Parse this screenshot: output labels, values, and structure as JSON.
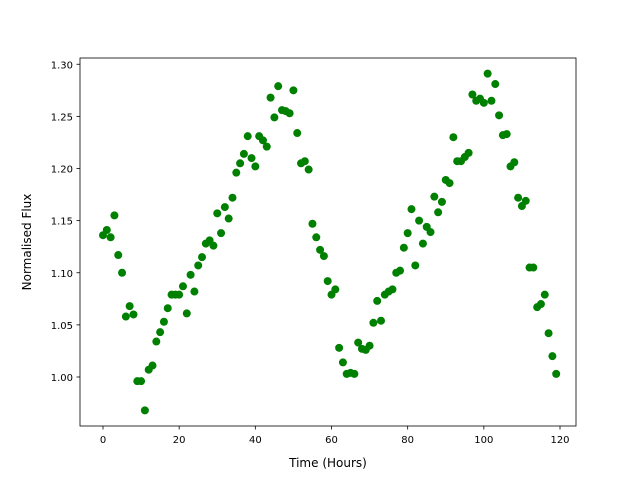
{
  "chart_data": {
    "type": "scatter",
    "title": "",
    "xlabel": "Time (Hours)",
    "ylabel": "Normalised Flux",
    "xlim": [
      -6.04,
      124.2
    ],
    "ylim": [
      0.953,
      1.306
    ],
    "xticks": [
      0,
      20,
      40,
      60,
      80,
      100,
      120
    ],
    "yticks": [
      1.0,
      1.05,
      1.1,
      1.15,
      1.2,
      1.25,
      1.3
    ],
    "grid": false,
    "marker_color": "#008000",
    "x": [
      0,
      1,
      2,
      3,
      4,
      5,
      6,
      7,
      8,
      9,
      10,
      11,
      12,
      13,
      14,
      15,
      16,
      17,
      18,
      19,
      20,
      21,
      22,
      23,
      24,
      25,
      26,
      27,
      28,
      29,
      30,
      31,
      32,
      33,
      34,
      35,
      36,
      37,
      38,
      39,
      40,
      41,
      42,
      43,
      44,
      45,
      46,
      47,
      48,
      49,
      50,
      51,
      52,
      53,
      54,
      55,
      56,
      57,
      58,
      59,
      60,
      61,
      62,
      63,
      64,
      65,
      66,
      67,
      68,
      69,
      70,
      71,
      72,
      73,
      74,
      75,
      76,
      77,
      78,
      79,
      80,
      81,
      82,
      83,
      84,
      85,
      86,
      87,
      88,
      89,
      90,
      91,
      92,
      93,
      94,
      95,
      96,
      97,
      98,
      99,
      100,
      101,
      102,
      103,
      104,
      105,
      106,
      107,
      108,
      109,
      110,
      111,
      112,
      113,
      114,
      115,
      116,
      117,
      118,
      119
    ],
    "y": [
      1.136,
      1.141,
      1.134,
      1.155,
      1.117,
      1.1,
      1.058,
      1.068,
      1.06,
      0.996,
      0.996,
      0.968,
      1.007,
      1.011,
      1.034,
      1.043,
      1.053,
      1.066,
      1.079,
      1.079,
      1.079,
      1.087,
      1.061,
      1.098,
      1.082,
      1.107,
      1.115,
      1.128,
      1.131,
      1.126,
      1.157,
      1.138,
      1.163,
      1.152,
      1.172,
      1.196,
      1.205,
      1.214,
      1.231,
      1.21,
      1.202,
      1.231,
      1.227,
      1.221,
      1.268,
      1.249,
      1.279,
      1.256,
      1.255,
      1.253,
      1.275,
      1.234,
      1.205,
      1.207,
      1.199,
      1.147,
      1.134,
      1.122,
      1.116,
      1.092,
      1.079,
      1.084,
      1.028,
      1.014,
      1.003,
      1.004,
      1.003,
      1.033,
      1.027,
      1.026,
      1.03,
      1.052,
      1.073,
      1.054,
      1.079,
      1.082,
      1.084,
      1.1,
      1.102,
      1.124,
      1.138,
      1.161,
      1.107,
      1.15,
      1.128,
      1.144,
      1.139,
      1.173,
      1.158,
      1.168,
      1.189,
      1.186,
      1.23,
      1.207,
      1.207,
      1.211,
      1.215,
      1.271,
      1.265,
      1.267,
      1.263,
      1.291,
      1.265,
      1.281,
      1.251,
      1.232,
      1.233,
      1.202,
      1.206,
      1.172,
      1.164,
      1.169,
      1.105,
      1.105,
      1.067,
      1.07,
      1.079,
      1.042,
      1.02,
      1.003
    ]
  }
}
